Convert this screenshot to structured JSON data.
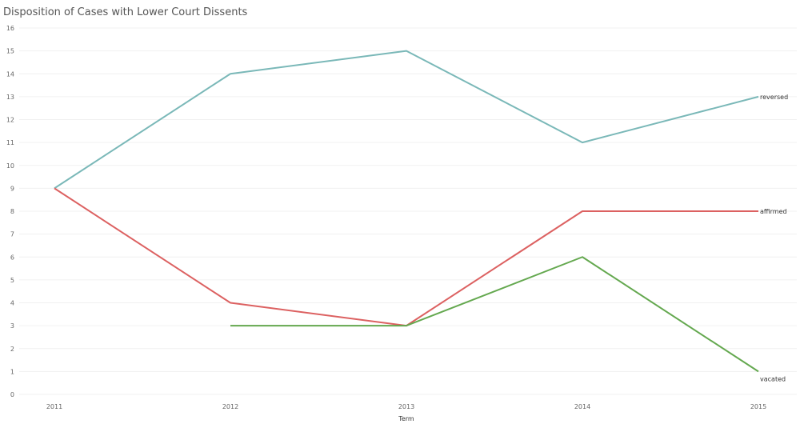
{
  "chart_data": {
    "type": "line",
    "title": "Disposition of Cases with Lower Court Dissents",
    "xlabel": "Term",
    "ylabel": "",
    "categories": [
      "2011",
      "2012",
      "2013",
      "2014",
      "2015"
    ],
    "ylim": [
      0,
      16
    ],
    "yticks": [
      0,
      1,
      2,
      3,
      4,
      5,
      6,
      7,
      8,
      9,
      10,
      11,
      12,
      13,
      14,
      15,
      16
    ],
    "grid": true,
    "legend": "inline labels at line ends",
    "series": [
      {
        "name": "reversed",
        "color": "#7ab8b8",
        "values": [
          9,
          14,
          15,
          11,
          13
        ]
      },
      {
        "name": "affirmed",
        "color": "#dc6161",
        "values": [
          9,
          4,
          3,
          8,
          8
        ]
      },
      {
        "name": "vacated",
        "color": "#64a84f",
        "values": [
          null,
          3,
          3,
          6,
          1
        ]
      }
    ]
  }
}
